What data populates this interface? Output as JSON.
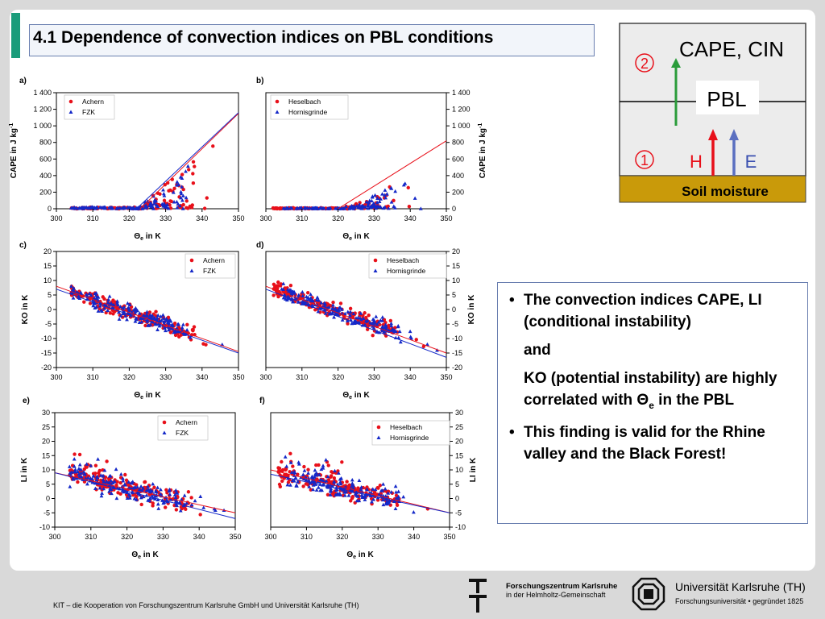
{
  "title": "4.1 Dependence of convection indices on PBL conditions",
  "schematic": {
    "cape_cin": "CAPE, CIN",
    "pbl": "PBL",
    "marker_top": "2",
    "marker_bottom": "1",
    "h": "H",
    "e": "E",
    "soil": "Soil moisture",
    "ghost": "CAPE"
  },
  "bullets": {
    "item1": "The convection indices CAPE, LI (conditional instability)",
    "and": "and",
    "ko_line_pre": "KO (potential instability) are highly correlated with Θ",
    "ko_line_sub": "e",
    "ko_line_post": " in the PBL",
    "item2": "This finding is valid for the Rhine valley and the Black Forest!"
  },
  "footer": "KIT – die Kooperation von Forschungszentrum Karlsruhe GmbH und Universität Karlsruhe (TH)",
  "fzk": {
    "line1": "Forschungszentrum Karlsruhe",
    "line2": "in der Helmholtz-Gemeinschaft"
  },
  "uni": {
    "line1": "Universität Karlsruhe (TH)",
    "line2": "Forschungsuniversität • gegründet 1825"
  },
  "axes_common": {
    "theta": "Θ",
    "theta_sub": "e",
    "theta_unit": " in K"
  },
  "colors": {
    "red": "#e8101a",
    "blue": "#1428c8",
    "accent": "#1a9c7a",
    "soil": "#c99a0a"
  },
  "chart_data": [
    {
      "id": "a",
      "panel": "a)",
      "type": "scatter",
      "ylabel": "CAPE in J kg",
      "ylabel_sup": "-1",
      "xlim": [
        300,
        350
      ],
      "ylim": [
        0,
        1400
      ],
      "yticks": [
        0,
        200,
        400,
        600,
        800,
        1000,
        1200,
        1400
      ],
      "ytick_labels": [
        "0",
        "200",
        "400",
        "600",
        "800",
        "1 000",
        "1 200",
        "1 400"
      ],
      "xticks": [
        300,
        310,
        320,
        330,
        340,
        350
      ],
      "series": [
        {
          "name": "Achern"
        },
        {
          "name": "FZK"
        }
      ],
      "fits": [
        [
          [
            323,
            0
          ],
          [
            350,
            1150
          ]
        ],
        [
          [
            322,
            0
          ],
          [
            350,
            1160
          ]
        ]
      ]
    },
    {
      "id": "b",
      "panel": "b)",
      "type": "scatter",
      "ylabel": "CAPE in J kg",
      "ylabel_sup": "-1",
      "xlim": [
        300,
        350
      ],
      "ylim": [
        0,
        1400
      ],
      "yticks": [
        0,
        200,
        400,
        600,
        800,
        1000,
        1200,
        1400
      ],
      "ytick_labels": [
        "0",
        "200",
        "400",
        "600",
        "800",
        "1 000",
        "1 200",
        "1 400"
      ],
      "xticks": [
        300,
        310,
        320,
        330,
        340,
        350
      ],
      "series": [
        {
          "name": "Heselbach"
        },
        {
          "name": "Hornisgrinde"
        }
      ],
      "fits": [
        [
          [
            320,
            0
          ],
          [
            350,
            820
          ]
        ],
        null
      ]
    },
    {
      "id": "c",
      "panel": "c)",
      "type": "scatter",
      "ylabel": "KO in K",
      "xlim": [
        300,
        350
      ],
      "ylim": [
        -20,
        20
      ],
      "yticks": [
        -20,
        -15,
        -10,
        -5,
        0,
        5,
        10,
        15,
        20
      ],
      "ytick_labels": [
        "-20",
        "-15",
        "-10",
        "-5",
        "0",
        "5",
        "10",
        "15",
        "20"
      ],
      "xticks": [
        300,
        310,
        320,
        330,
        340,
        350
      ],
      "series": [
        {
          "name": "Achern"
        },
        {
          "name": "FZK"
        }
      ],
      "fits": [
        [
          [
            300,
            8
          ],
          [
            350,
            -14.5
          ]
        ],
        [
          [
            300,
            7
          ],
          [
            350,
            -15
          ]
        ]
      ]
    },
    {
      "id": "d",
      "panel": "d)",
      "type": "scatter",
      "ylabel": "KO in K",
      "xlim": [
        300,
        350
      ],
      "ylim": [
        -20,
        20
      ],
      "yticks": [
        -20,
        -15,
        -10,
        -5,
        0,
        5,
        10,
        15,
        20
      ],
      "ytick_labels": [
        "-20",
        "-15",
        "-10",
        "-5",
        "0",
        "5",
        "10",
        "15",
        "20"
      ],
      "xticks": [
        300,
        310,
        320,
        330,
        340,
        350
      ],
      "series": [
        {
          "name": "Heselbach"
        },
        {
          "name": "Hornisgrinde"
        }
      ],
      "fits": [
        [
          [
            300,
            8
          ],
          [
            350,
            -15
          ]
        ],
        [
          [
            300,
            7
          ],
          [
            350,
            -16.5
          ]
        ]
      ]
    },
    {
      "id": "e",
      "panel": "e)",
      "type": "scatter",
      "ylabel": "LI in K",
      "xlim": [
        300,
        350
      ],
      "ylim": [
        -10,
        30
      ],
      "yticks": [
        -10,
        -5,
        0,
        5,
        10,
        15,
        20,
        25,
        30
      ],
      "ytick_labels": [
        "-10",
        "-5",
        "0",
        "5",
        "10",
        "15",
        "20",
        "25",
        "30"
      ],
      "xticks": [
        300,
        310,
        320,
        330,
        340,
        350
      ],
      "series": [
        {
          "name": "Achern"
        },
        {
          "name": "FZK"
        }
      ],
      "fits": [
        [
          [
            300,
            9
          ],
          [
            350,
            -5
          ]
        ],
        [
          [
            300,
            9
          ],
          [
            350,
            -7
          ]
        ]
      ]
    },
    {
      "id": "f",
      "panel": "f)",
      "type": "scatter",
      "ylabel": "LI in K",
      "xlim": [
        300,
        350
      ],
      "ylim": [
        -10,
        30
      ],
      "yticks": [
        -10,
        -5,
        0,
        5,
        10,
        15,
        20,
        25,
        30
      ],
      "ytick_labels": [
        "-10",
        "-5",
        "0",
        "5",
        "10",
        "15",
        "20",
        "25",
        "30"
      ],
      "xticks": [
        300,
        310,
        320,
        330,
        340,
        350
      ],
      "series": [
        {
          "name": "Heselbach"
        },
        {
          "name": "Hornisgrinde"
        }
      ],
      "fits": [
        [
          [
            300,
            10
          ],
          [
            350,
            -5
          ]
        ],
        [
          [
            300,
            8.5
          ],
          [
            350,
            -5
          ]
        ]
      ]
    }
  ]
}
